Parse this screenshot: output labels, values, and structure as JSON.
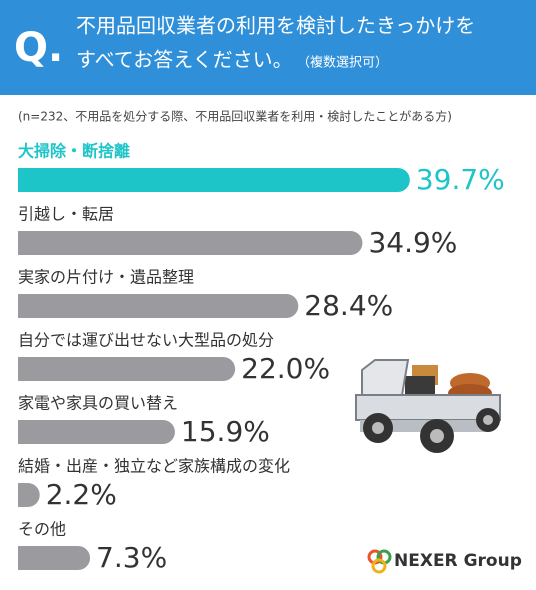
{
  "chart_data": {
    "type": "bar",
    "orientation": "horizontal",
    "header_mark": "Q.",
    "title_lines": [
      "不用品回収業者の利用を検討したきっかけを",
      "すべてお答えください。"
    ],
    "title_note": "（複数選択可）",
    "subtitle": "(n=232、不用品を処分する際、不用品回収業者を利用・検討したことがある方)",
    "categories": [
      "大掃除・断捨離",
      "引越し・転居",
      "実家の片付け・遺品整理",
      "自分では運び出せない大型品の処分",
      "家電や家具の買い替え",
      "結婚・出産・独立など家族構成の変化",
      "その他"
    ],
    "values": [
      39.7,
      34.9,
      28.4,
      22.0,
      15.9,
      2.2,
      7.3
    ],
    "value_labels": [
      "39.7%",
      "34.9%",
      "28.4%",
      "22.0%",
      "15.9%",
      "2.2%",
      "7.3%"
    ],
    "colors": [
      "#1ec5c8",
      "#9b9b9f",
      "#9b9b9f",
      "#9b9b9f",
      "#9b9b9f",
      "#9b9b9f",
      "#9b9b9f"
    ],
    "logo": "NEXER Group"
  }
}
